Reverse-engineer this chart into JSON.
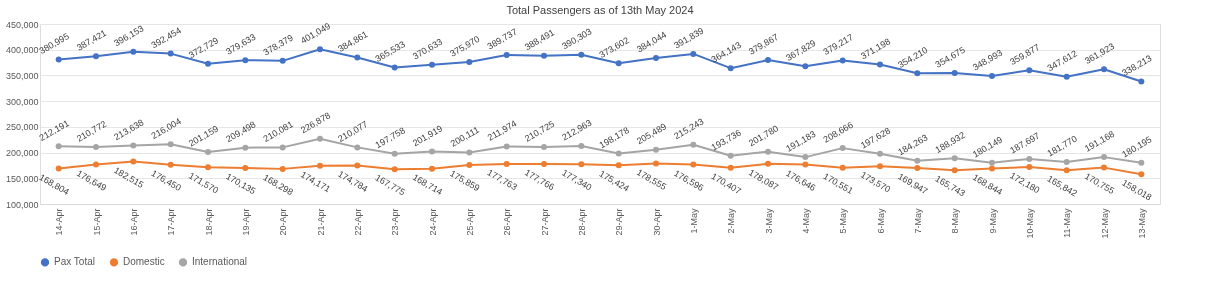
{
  "chart_data": {
    "type": "line",
    "title": "Total Passengers as of 13th May 2024",
    "categories": [
      "14-Apr",
      "15-Apr",
      "16-Apr",
      "17-Apr",
      "18-Apr",
      "19-Apr",
      "20-Apr",
      "21-Apr",
      "22-Apr",
      "23-Apr",
      "24-Apr",
      "25-Apr",
      "26-Apr",
      "27-Apr",
      "28-Apr",
      "29-Apr",
      "30-Apr",
      "1-May",
      "2-May",
      "3-May",
      "4-May",
      "5-May",
      "6-May",
      "7-May",
      "8-May",
      "9-May",
      "10-May",
      "11-May",
      "12-May",
      "13-May"
    ],
    "series": [
      {
        "name": "Pax Total",
        "color": "#4472c4",
        "values": [
          380995,
          387421,
          396153,
          392454,
          372729,
          379633,
          378379,
          401049,
          384861,
          365533,
          370633,
          375970,
          389737,
          388491,
          390303,
          373602,
          384044,
          391839,
          364143,
          379867,
          367829,
          379217,
          371198,
          354210,
          354675,
          348993,
          359877,
          347612,
          361923,
          338213
        ],
        "value_labels": [
          "380,995",
          "387,421",
          "396,153",
          "392,454",
          "372,729",
          "379,633",
          "378,379",
          "401,049",
          "384,861",
          "365,533",
          "370,633",
          "375,970",
          "389,737",
          "388,491",
          "390,303",
          "373,602",
          "384,044",
          "391,839",
          "364,143",
          "379,867",
          "367,829",
          "379,217",
          "371,198",
          "354,210",
          "354,675",
          "348,993",
          "359,877",
          "347,612",
          "361,923",
          "338,213"
        ]
      },
      {
        "name": "Domestic",
        "color": "#ed7d31",
        "values": [
          168804,
          176649,
          182515,
          176450,
          171570,
          170135,
          168298,
          174171,
          174784,
          167775,
          168714,
          175859,
          177763,
          177766,
          177340,
          175424,
          178555,
          176596,
          170407,
          178087,
          176646,
          170551,
          173570,
          169947,
          165743,
          168844,
          172180,
          165842,
          170755,
          158018
        ],
        "value_labels": [
          "168,804",
          "176,649",
          "182,515",
          "176,450",
          "171,570",
          "170,135",
          "168,298",
          "174,171",
          "174,784",
          "167,775",
          "168,714",
          "175,859",
          "177,763",
          "177,766",
          "177,340",
          "175,424",
          "178,555",
          "176,596",
          "170,407",
          "178,087",
          "176,646",
          "170,551",
          "173,570",
          "169,947",
          "165,743",
          "168,844",
          "172,180",
          "165,842",
          "170,755",
          "158,018"
        ]
      },
      {
        "name": "International",
        "color": "#a5a5a5",
        "values": [
          212191,
          210772,
          213638,
          216004,
          201159,
          209498,
          210081,
          226878,
          210077,
          197758,
          201919,
          200111,
          211974,
          210725,
          212963,
          198178,
          205489,
          215243,
          193736,
          201780,
          191183,
          208666,
          197628,
          184263,
          188932,
          180149,
          187697,
          181770,
          191168,
          180195
        ],
        "value_labels": [
          "212,191",
          "210,772",
          "213,638",
          "216,004",
          "201,159",
          "209,498",
          "210,081",
          "226,878",
          "210,077",
          "197,758",
          "201,919",
          "200,111",
          "211,974",
          "210,725",
          "212,963",
          "198,178",
          "205,489",
          "215,243",
          "193,736",
          "201,780",
          "191,183",
          "208,666",
          "197,628",
          "184,263",
          "188,932",
          "180,149",
          "187,697",
          "181,770",
          "191,168",
          "180,195"
        ]
      }
    ],
    "ylim": [
      100000,
      450000
    ],
    "yticks": [
      {
        "value": 100000,
        "label": "100,000"
      },
      {
        "value": 150000,
        "label": "150,000"
      },
      {
        "value": 200000,
        "label": "200,000"
      },
      {
        "value": 250000,
        "label": "250,000"
      },
      {
        "value": 300000,
        "label": "300,000"
      },
      {
        "value": 350000,
        "label": "350,000"
      },
      {
        "value": 400000,
        "label": "400,000"
      },
      {
        "value": 450000,
        "label": "450,000"
      }
    ],
    "grid": "y",
    "legend": "bottom",
    "marker": "circle",
    "line_style": "solid"
  }
}
